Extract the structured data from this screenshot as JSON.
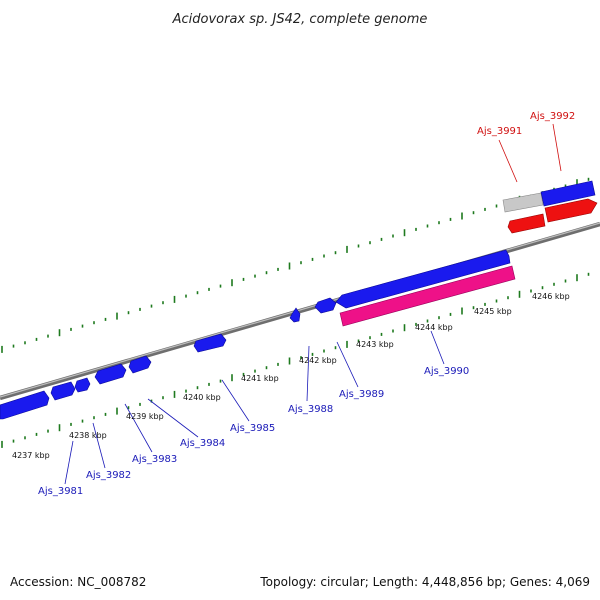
{
  "title": "Acidovorax sp. JS42, complete genome",
  "footer": {
    "accession": "Accession: NC_008782",
    "summary": "Topology: circular; Length: 4,448,856 bp; Genes: 4,069"
  },
  "colors": {
    "forward_gene": "#1a1aee",
    "reverse_gene": "#ee1111",
    "rna_gene": "#ee1188",
    "other_gene": "#c8c8c8",
    "backbone": "#8a8a8a",
    "tick": "#1e7a1e",
    "label_blue": "#1a1ab8",
    "label_red": "#d01010"
  },
  "scale_labels": [
    "4237 kbp",
    "4238 kbp",
    "4239 kbp",
    "4240 kbp",
    "4241 kbp",
    "4242 kbp",
    "4243 kbp",
    "4244 kbp",
    "4245 kbp",
    "4246 kbp"
  ],
  "gene_labels": [
    {
      "name": "Ajs_3981",
      "color": "blue"
    },
    {
      "name": "Ajs_3982",
      "color": "blue"
    },
    {
      "name": "Ajs_3983",
      "color": "blue"
    },
    {
      "name": "Ajs_3984",
      "color": "blue"
    },
    {
      "name": "Ajs_3985",
      "color": "blue"
    },
    {
      "name": "Ajs_3988",
      "color": "blue"
    },
    {
      "name": "Ajs_3989",
      "color": "blue"
    },
    {
      "name": "Ajs_3990",
      "color": "blue"
    },
    {
      "name": "Ajs_3991",
      "color": "red"
    },
    {
      "name": "Ajs_3992",
      "color": "red"
    }
  ]
}
